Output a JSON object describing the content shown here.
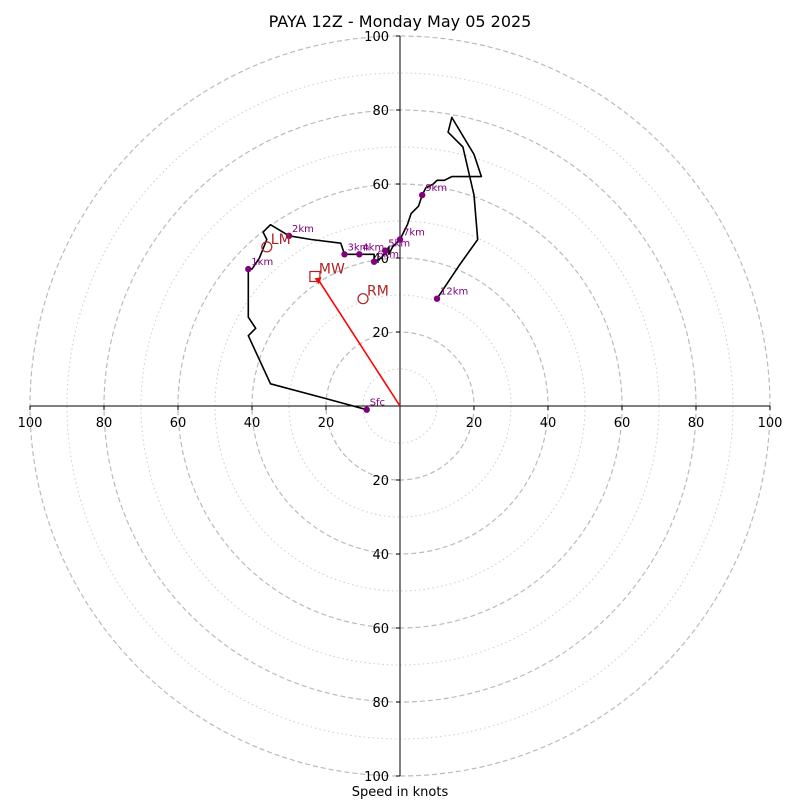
{
  "chart_data": {
    "type": "hodograph",
    "title": "PAYA 12Z - Monday May 05 2025",
    "xlabel": "Speed in knots",
    "units": "knots",
    "max_speed": 100,
    "rings_major": [
      20,
      40,
      60,
      80,
      100
    ],
    "rings_minor": [
      10,
      30,
      50,
      70,
      90
    ],
    "x_tick_labels": [
      "100",
      "80",
      "60",
      "40",
      "20",
      "",
      "20",
      "40",
      "60",
      "80",
      "100"
    ],
    "x_tick_values": [
      -100,
      -80,
      -60,
      -40,
      -20,
      0,
      20,
      40,
      60,
      80,
      100
    ],
    "y_tick_labels": [
      "100",
      "80",
      "60",
      "40",
      "20",
      "",
      "20",
      "40",
      "60",
      "80",
      "100"
    ],
    "y_tick_values": [
      100,
      80,
      60,
      40,
      20,
      0,
      -20,
      -40,
      -60,
      -80,
      -100
    ],
    "colors": {
      "trace": "#000000",
      "height_marker": "#800080",
      "motion": "#b22222",
      "shear_vector": "#ff0000",
      "ring": "#bbbbbb"
    },
    "trace": [
      [
        -9,
        -1
      ],
      [
        -20,
        2
      ],
      [
        -35,
        6
      ],
      [
        -41,
        19
      ],
      [
        -39,
        21
      ],
      [
        -41,
        24
      ],
      [
        -41,
        37
      ],
      [
        -40,
        37
      ],
      [
        -38,
        40
      ],
      [
        -36,
        45
      ],
      [
        -37,
        47
      ],
      [
        -35,
        49
      ],
      [
        -30,
        46
      ],
      [
        -24,
        45
      ],
      [
        -16,
        44
      ],
      [
        -15,
        41
      ],
      [
        -11,
        41
      ],
      [
        -7,
        41
      ],
      [
        -7,
        39
      ],
      [
        -5,
        40
      ],
      [
        -3,
        43
      ],
      [
        -3,
        41
      ],
      [
        -2,
        43
      ],
      [
        0,
        45
      ],
      [
        1,
        47
      ],
      [
        2,
        49
      ],
      [
        3,
        52
      ],
      [
        5,
        54
      ],
      [
        6,
        57
      ],
      [
        7,
        59
      ],
      [
        9,
        60
      ],
      [
        10,
        61
      ],
      [
        12,
        61
      ],
      [
        14,
        62
      ],
      [
        22,
        62
      ],
      [
        20,
        68
      ],
      [
        14,
        78
      ],
      [
        13,
        74
      ],
      [
        17,
        70
      ],
      [
        20,
        57
      ],
      [
        21,
        45
      ],
      [
        16,
        38
      ],
      [
        10,
        29
      ],
      [
        10,
        29
      ]
    ],
    "height_points": [
      {
        "label": "Sfc",
        "u": -9,
        "v": -1
      },
      {
        "label": "1km",
        "u": -41,
        "v": 37
      },
      {
        "label": "2km",
        "u": -30,
        "v": 46
      },
      {
        "label": "3km",
        "u": -15,
        "v": 41
      },
      {
        "label": "4km",
        "u": -11,
        "v": 41
      },
      {
        "label": "5km",
        "u": -4,
        "v": 42
      },
      {
        "label": "6km",
        "u": -7,
        "v": 39
      },
      {
        "label": "7km",
        "u": 0,
        "v": 45
      },
      {
        "label": "9km",
        "u": 6,
        "v": 57
      },
      {
        "label": "12km",
        "u": 10,
        "v": 29
      }
    ],
    "storm_motions": [
      {
        "label": "LM",
        "u": -36,
        "v": 43,
        "marker": "circle"
      },
      {
        "label": "MW",
        "u": -23,
        "v": 35,
        "marker": "square"
      },
      {
        "label": "RM",
        "u": -10,
        "v": 29,
        "marker": "circle"
      }
    ],
    "shear_vector": {
      "from": [
        0,
        0
      ],
      "to": [
        -22,
        34
      ]
    }
  }
}
